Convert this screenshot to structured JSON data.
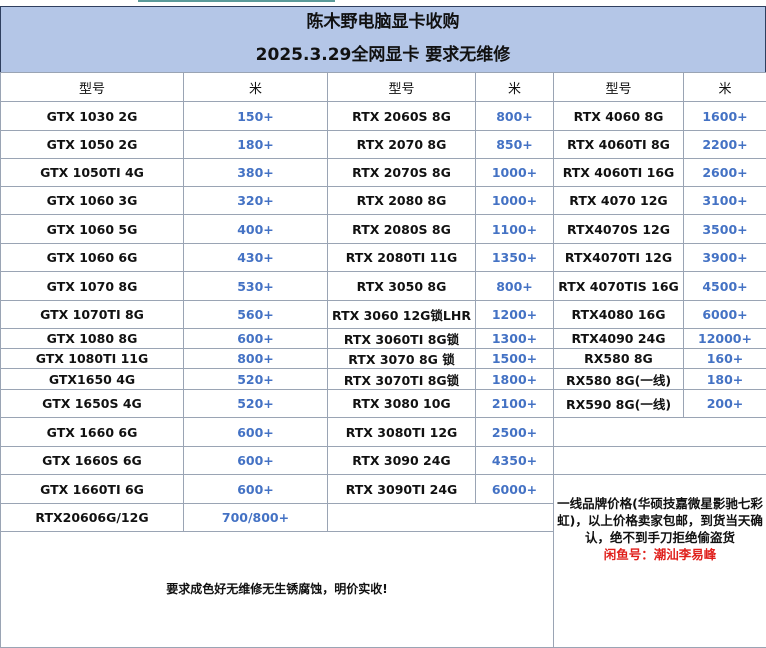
{
  "title": "陈木野电脑显卡收购",
  "subtitle": "2025.3.29全网显卡  要求无维修",
  "headers": [
    "型号",
    "米",
    "型号",
    "米",
    "型号",
    "米"
  ],
  "left": [
    [
      "GTX 1030 2G",
      "150+"
    ],
    [
      "GTX 1050 2G",
      "180+"
    ],
    [
      "GTX 1050TI 4G",
      "380+"
    ],
    [
      "GTX 1060 3G",
      "320+"
    ],
    [
      "GTX 1060 5G",
      "400+"
    ],
    [
      "GTX 1060 6G",
      "430+"
    ],
    [
      "GTX 1070 8G",
      "530+"
    ],
    [
      "GTX 1070TI 8G",
      "560+"
    ],
    [
      "GTX 1080 8G",
      "600+"
    ],
    [
      "GTX 1080TI 11G",
      "800+"
    ],
    [
      "GTX1650 4G",
      "520+"
    ],
    [
      "GTX 1650S 4G",
      "520+"
    ],
    [
      "GTX 1660 6G",
      "600+"
    ],
    [
      "GTX 1660S 6G",
      "600+"
    ],
    [
      "GTX 1660TI 6G",
      "600+"
    ],
    [
      "RTX20606G/12G",
      "700/800+"
    ]
  ],
  "middle": [
    [
      "RTX 2060S 8G",
      "800+"
    ],
    [
      "RTX 2070 8G",
      "850+"
    ],
    [
      "RTX 2070S 8G",
      "1000+"
    ],
    [
      "RTX 2080 8G",
      "1000+"
    ],
    [
      "RTX 2080S 8G",
      "1100+"
    ],
    [
      "RTX 2080TI 11G",
      "1350+"
    ],
    [
      "RTX 3050 8G",
      "800+"
    ],
    [
      "RTX 3060 12G锁LHR",
      "1200+"
    ],
    [
      "RTX 3060TI 8G锁",
      "1300+"
    ],
    [
      "RTX 3070 8G 锁",
      "1500+"
    ],
    [
      "RTX 3070TI 8G锁",
      "1800+"
    ],
    [
      "RTX 3080 10G",
      "2100+"
    ],
    [
      "RTX 3080TI 12G",
      "2500+"
    ],
    [
      "RTX 3090 24G",
      "4350+"
    ],
    [
      "RTX 3090TI 24G",
      "6000+"
    ]
  ],
  "right": [
    [
      "RTX 4060 8G",
      "1600+"
    ],
    [
      "RTX 4060TI 8G",
      "2200+"
    ],
    [
      "RTX 4060TI 16G",
      "2600+"
    ],
    [
      "RTX 4070 12G",
      "3100+"
    ],
    [
      "RTX4070S 12G",
      "3500+"
    ],
    [
      "RTX4070TI 12G",
      "3900+"
    ],
    [
      "RTX 4070TIS 16G",
      "4500+"
    ],
    [
      "RTX4080 16G",
      "6000+"
    ],
    [
      "RTX4090 24G",
      "12000+"
    ],
    [
      "RX580 8G",
      "160+"
    ],
    [
      "RX580 8G(一线)",
      "180+"
    ],
    [
      "RX590 8G(一线)",
      "200+"
    ]
  ],
  "right_note": "一线品牌价格(华硕技嘉微星影驰七彩虹)，以上价格卖家包邮，到货当天确认，绝不到手刀拒绝偷盗货",
  "right_contact": "闲鱼号：潮汕李易峰",
  "bottom_note": "要求成色好无维修无生锈腐蚀，明价实收!",
  "colors": {
    "header_bg": "#b4c6e7",
    "price": "#4472c4",
    "contact": "#e0201c"
  }
}
